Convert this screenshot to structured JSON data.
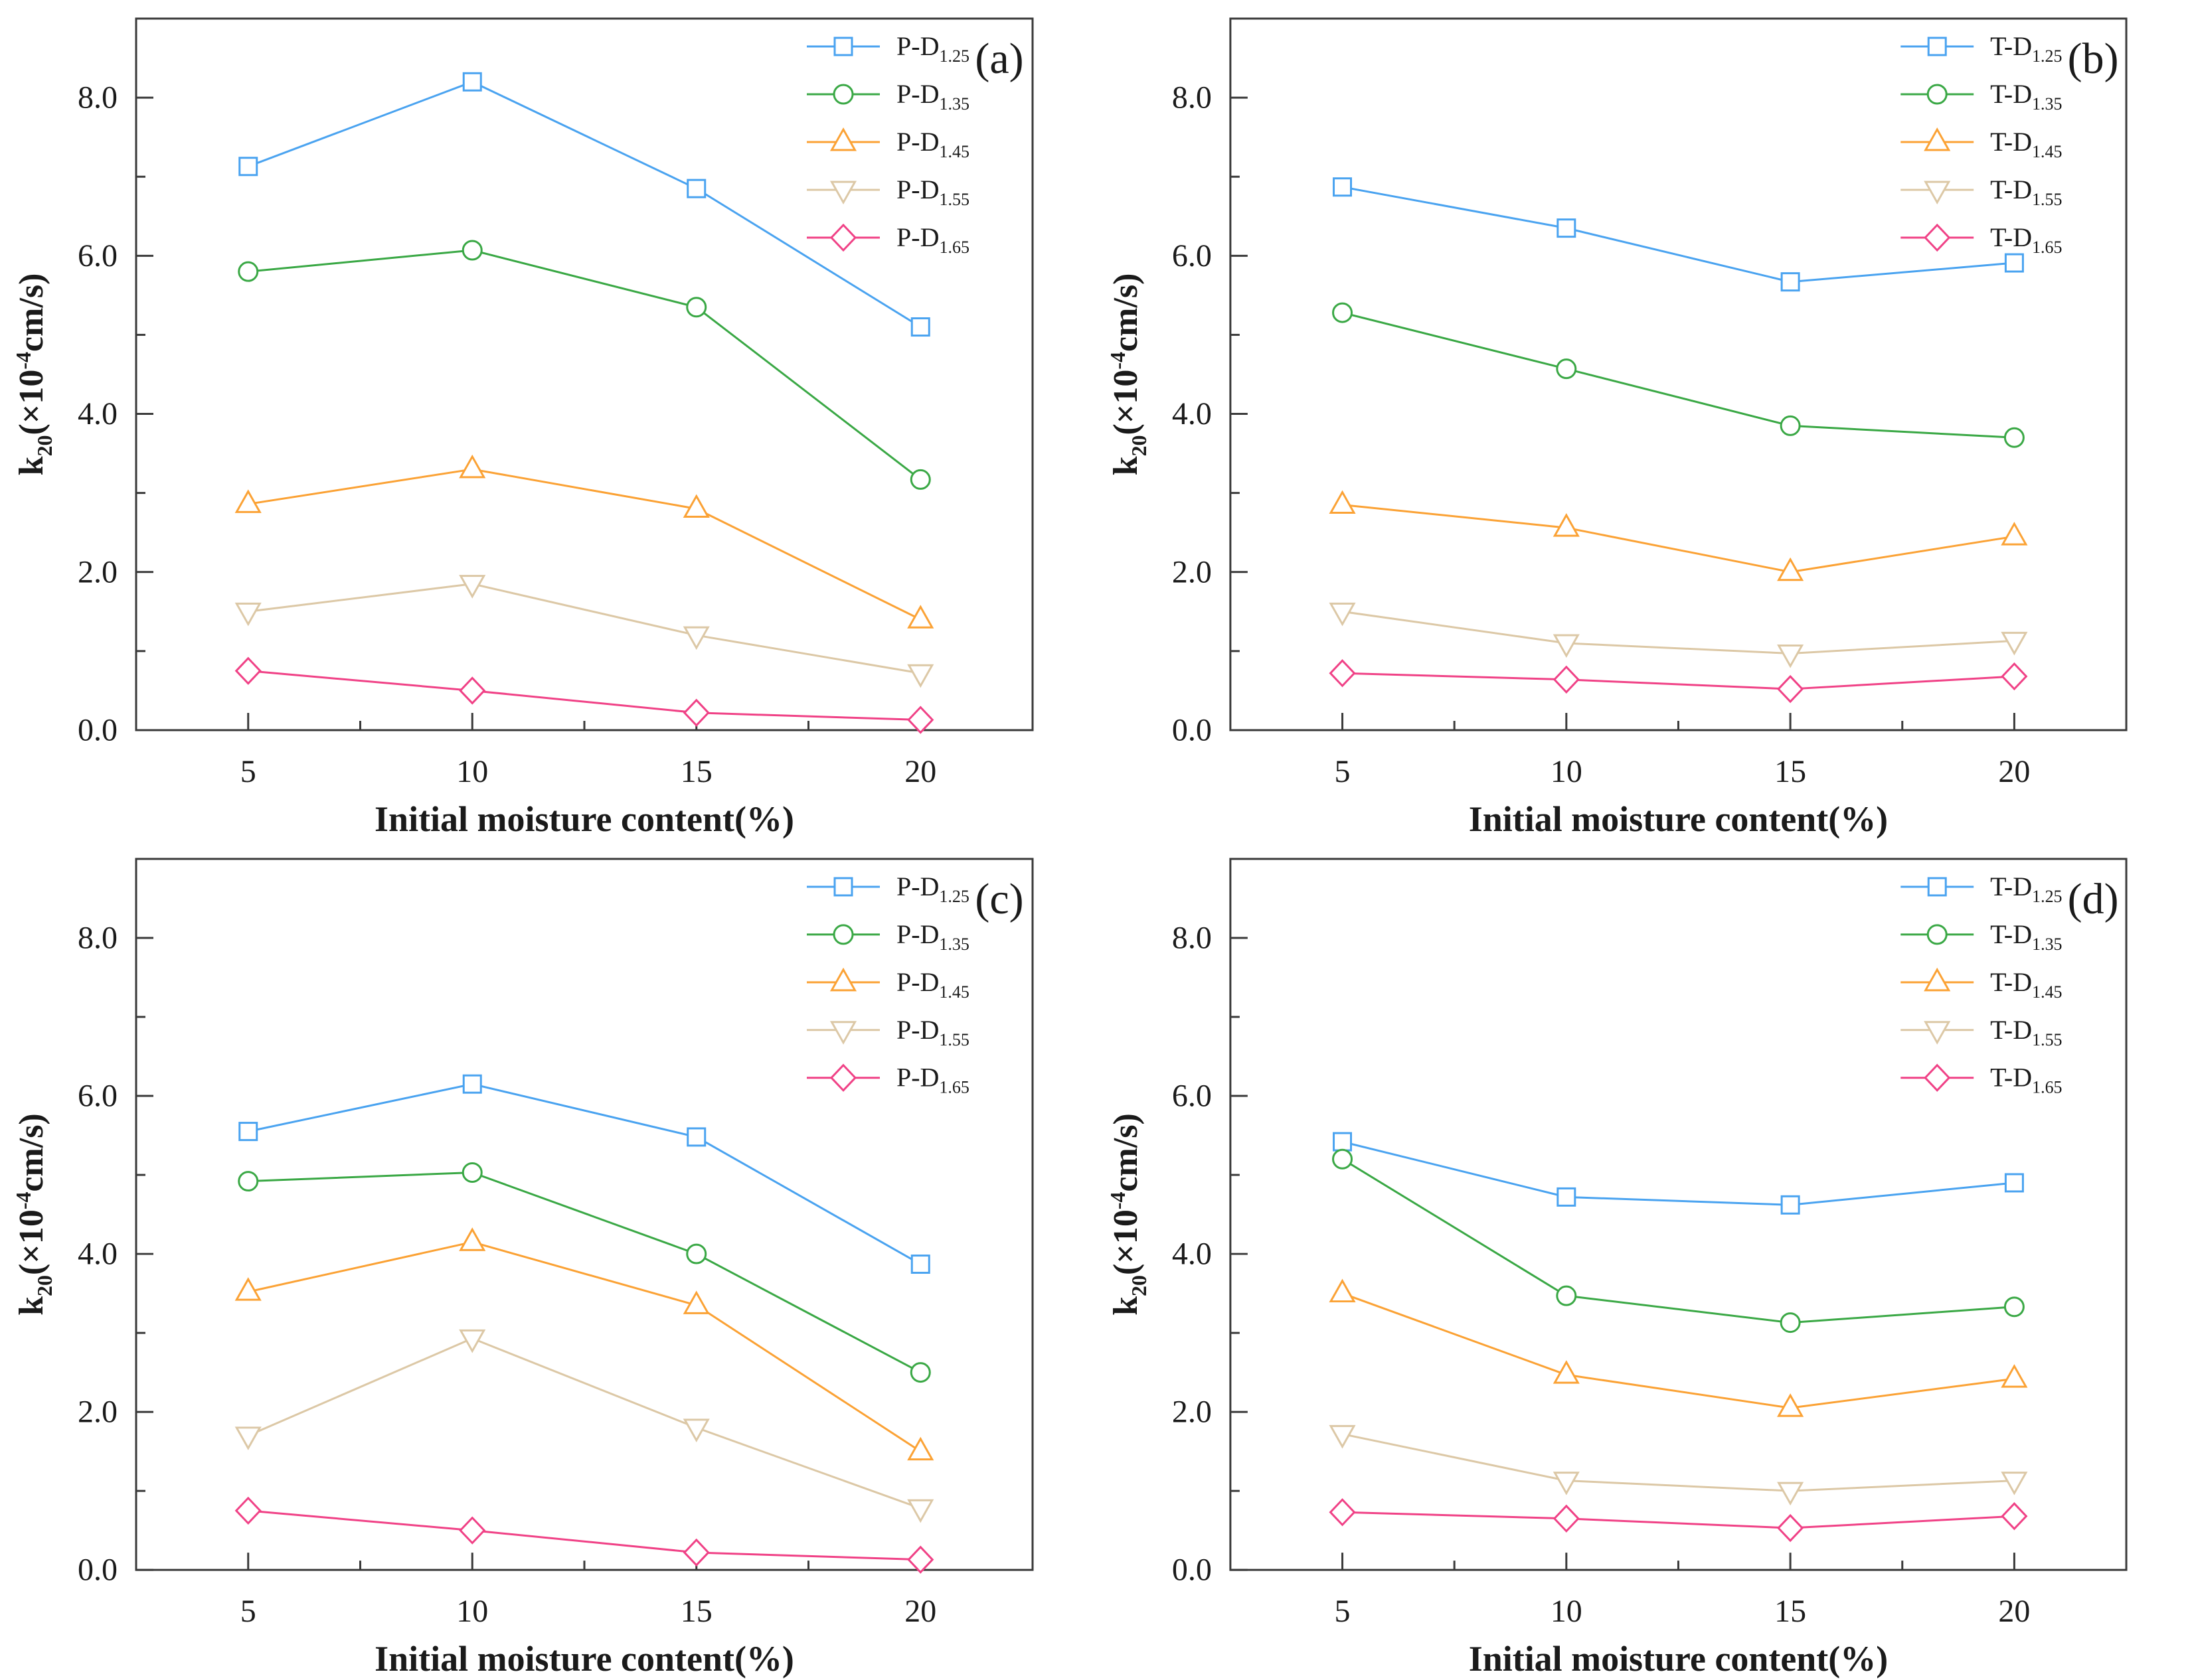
{
  "figure": {
    "background": "#ffffff",
    "frame_color": "#3a3a3a",
    "text_color": "#1a1a1a"
  },
  "chart_data": [
    {
      "type": "line",
      "panel_label": "(a)",
      "title": "",
      "xlabel": "Initial moisture content(%)",
      "ylabel_parts": {
        "base": "k",
        "base_sub": "20",
        "mid": "(×10",
        "sup": "-4",
        "end": "cm/s)"
      },
      "x": [
        5,
        10,
        15,
        20
      ],
      "xlim": [
        2.5,
        22.5
      ],
      "ylim": [
        0,
        9
      ],
      "grid": false,
      "legend_position": "top-right",
      "xticks": {
        "major": [
          5,
          10,
          15,
          20
        ],
        "minor": [
          7.5,
          12.5,
          17.5
        ],
        "labels": [
          "5",
          "10",
          "15",
          "20"
        ]
      },
      "yticks": {
        "major": [
          0,
          2,
          4,
          6,
          8
        ],
        "minor": [
          1,
          3,
          5,
          7
        ],
        "labels": [
          "0.0",
          "2.0",
          "4.0",
          "6.0",
          "8.0"
        ]
      },
      "series": [
        {
          "label": "P-D",
          "label_sub": "1.25",
          "marker": "square",
          "color": "#4aa3f0",
          "values": [
            7.13,
            8.2,
            6.85,
            5.1
          ]
        },
        {
          "label": "P-D",
          "label_sub": "1.35",
          "marker": "circle",
          "color": "#3aa845",
          "values": [
            5.8,
            6.07,
            5.35,
            3.17
          ]
        },
        {
          "label": "P-D",
          "label_sub": "1.45",
          "marker": "triangle-up",
          "color": "#fba235",
          "values": [
            2.86,
            3.3,
            2.8,
            1.4
          ]
        },
        {
          "label": "P-D",
          "label_sub": "1.55",
          "marker": "triangle-down",
          "color": "#dcc8a6",
          "values": [
            1.5,
            1.85,
            1.2,
            0.72
          ]
        },
        {
          "label": "P-D",
          "label_sub": "1.65",
          "marker": "diamond",
          "color": "#f04186",
          "values": [
            0.75,
            0.5,
            0.22,
            0.13
          ]
        }
      ]
    },
    {
      "type": "line",
      "panel_label": "(b)",
      "title": "",
      "xlabel": "Initial moisture content(%)",
      "ylabel_parts": {
        "base": "k",
        "base_sub": "20",
        "mid": "(×10",
        "sup": "-4",
        "end": "cm/s)"
      },
      "x": [
        5,
        10,
        15,
        20
      ],
      "xlim": [
        2.5,
        22.5
      ],
      "ylim": [
        0,
        9
      ],
      "grid": false,
      "legend_position": "top-right",
      "xticks": {
        "major": [
          5,
          10,
          15,
          20
        ],
        "minor": [
          7.5,
          12.5,
          17.5
        ],
        "labels": [
          "5",
          "10",
          "15",
          "20"
        ]
      },
      "yticks": {
        "major": [
          0,
          2,
          4,
          6,
          8
        ],
        "minor": [
          1,
          3,
          5,
          7
        ],
        "labels": [
          "0.0",
          "2.0",
          "4.0",
          "6.0",
          "8.0"
        ]
      },
      "series": [
        {
          "label": "T-D",
          "label_sub": "1.25",
          "marker": "square",
          "color": "#4aa3f0",
          "values": [
            6.87,
            6.35,
            5.67,
            5.91
          ]
        },
        {
          "label": "T-D",
          "label_sub": "1.35",
          "marker": "circle",
          "color": "#3aa845",
          "values": [
            5.28,
            4.57,
            3.85,
            3.7
          ]
        },
        {
          "label": "T-D",
          "label_sub": "1.45",
          "marker": "triangle-up",
          "color": "#fba235",
          "values": [
            2.85,
            2.56,
            2.0,
            2.45
          ]
        },
        {
          "label": "T-D",
          "label_sub": "1.55",
          "marker": "triangle-down",
          "color": "#dcc8a6",
          "values": [
            1.5,
            1.1,
            0.97,
            1.13
          ]
        },
        {
          "label": "T-D",
          "label_sub": "1.65",
          "marker": "diamond",
          "color": "#f04186",
          "values": [
            0.72,
            0.64,
            0.52,
            0.68
          ]
        }
      ]
    },
    {
      "type": "line",
      "panel_label": "(c)",
      "title": "",
      "xlabel": "Initial moisture content(%)",
      "ylabel_parts": {
        "base": "k",
        "base_sub": "20",
        "mid": "(×10",
        "sup": "-4",
        "end": "cm/s)"
      },
      "x": [
        5,
        10,
        15,
        20
      ],
      "xlim": [
        2.5,
        22.5
      ],
      "ylim": [
        0,
        9
      ],
      "grid": false,
      "legend_position": "top-right",
      "xticks": {
        "major": [
          5,
          10,
          15,
          20
        ],
        "minor": [
          7.5,
          12.5,
          17.5
        ],
        "labels": [
          "5",
          "10",
          "15",
          "20"
        ]
      },
      "yticks": {
        "major": [
          0,
          2,
          4,
          6,
          8
        ],
        "minor": [
          1,
          3,
          5,
          7
        ],
        "labels": [
          "0.0",
          "2.0",
          "4.0",
          "6.0",
          "8.0"
        ]
      },
      "series": [
        {
          "label": "P-D",
          "label_sub": "1.25",
          "marker": "square",
          "color": "#4aa3f0",
          "values": [
            5.55,
            6.15,
            5.48,
            3.87
          ]
        },
        {
          "label": "P-D",
          "label_sub": "1.35",
          "marker": "circle",
          "color": "#3aa845",
          "values": [
            4.92,
            5.03,
            4.0,
            2.5
          ]
        },
        {
          "label": "P-D",
          "label_sub": "1.45",
          "marker": "triangle-up",
          "color": "#fba235",
          "values": [
            3.52,
            4.15,
            3.35,
            1.5
          ]
        },
        {
          "label": "P-D",
          "label_sub": "1.55",
          "marker": "triangle-down",
          "color": "#dcc8a6",
          "values": [
            1.7,
            2.93,
            1.8,
            0.78
          ]
        },
        {
          "label": "P-D",
          "label_sub": "1.65",
          "marker": "diamond",
          "color": "#f04186",
          "values": [
            0.75,
            0.5,
            0.22,
            0.13
          ]
        }
      ]
    },
    {
      "type": "line",
      "panel_label": "(d)",
      "title": "",
      "xlabel": "Initial moisture content(%)",
      "ylabel_parts": {
        "base": "k",
        "base_sub": "20",
        "mid": "(×10",
        "sup": "-4",
        "end": "cm/s)"
      },
      "x": [
        5,
        10,
        15,
        20
      ],
      "xlim": [
        2.5,
        22.5
      ],
      "ylim": [
        0,
        9
      ],
      "grid": false,
      "legend_position": "top-right",
      "xticks": {
        "major": [
          5,
          10,
          15,
          20
        ],
        "minor": [
          7.5,
          12.5,
          17.5
        ],
        "labels": [
          "5",
          "10",
          "15",
          "20"
        ]
      },
      "yticks": {
        "major": [
          0,
          2,
          4,
          6,
          8
        ],
        "minor": [
          1,
          3,
          5,
          7
        ],
        "labels": [
          "0.0",
          "2.0",
          "4.0",
          "6.0",
          "8.0"
        ]
      },
      "series": [
        {
          "label": "T-D",
          "label_sub": "1.25",
          "marker": "square",
          "color": "#4aa3f0",
          "values": [
            5.42,
            4.72,
            4.62,
            4.9
          ]
        },
        {
          "label": "T-D",
          "label_sub": "1.35",
          "marker": "circle",
          "color": "#3aa845",
          "values": [
            5.2,
            3.47,
            3.13,
            3.33
          ]
        },
        {
          "label": "T-D",
          "label_sub": "1.45",
          "marker": "triangle-up",
          "color": "#fba235",
          "values": [
            3.5,
            2.47,
            2.05,
            2.42
          ]
        },
        {
          "label": "T-D",
          "label_sub": "1.55",
          "marker": "triangle-down",
          "color": "#dcc8a6",
          "values": [
            1.72,
            1.13,
            1.0,
            1.13
          ]
        },
        {
          "label": "T-D",
          "label_sub": "1.65",
          "marker": "diamond",
          "color": "#f04186",
          "values": [
            0.73,
            0.65,
            0.53,
            0.68
          ]
        }
      ]
    }
  ]
}
